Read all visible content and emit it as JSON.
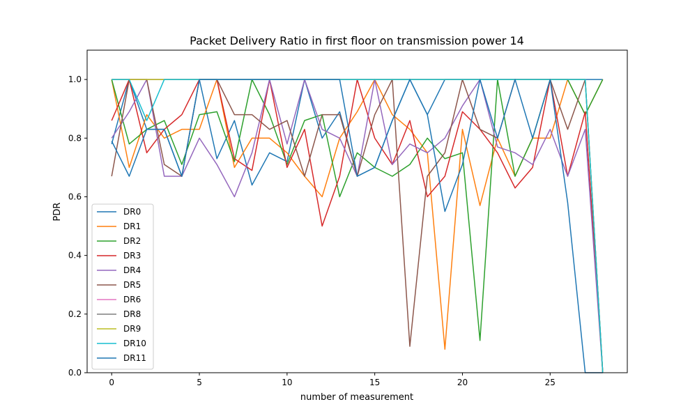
{
  "chart_data": {
    "type": "line",
    "title": "Packet Delivery Ratio in first floor on transmission power 14",
    "xlabel": "number of measurement",
    "ylabel": "PDR",
    "xlim": [
      -1.4,
      29.4
    ],
    "ylim": [
      0,
      1.1
    ],
    "x_ticks": [
      0,
      5,
      10,
      15,
      20,
      25
    ],
    "x_tick_labels": [
      "0",
      "5",
      "10",
      "15",
      "20",
      "25"
    ],
    "y_ticks": [
      0,
      0.2,
      0.4,
      0.6,
      0.8,
      1.0
    ],
    "y_tick_labels": [
      "0.0",
      "0.2",
      "0.4",
      "0.6",
      "0.8",
      "1.0"
    ],
    "grid": false,
    "legend_position": "lower-left",
    "x": [
      0,
      1,
      2,
      3,
      4,
      5,
      6,
      7,
      8,
      9,
      10,
      11,
      12,
      13,
      14,
      15,
      16,
      17,
      18,
      19,
      20,
      21,
      22,
      23,
      24,
      25,
      26,
      27,
      28
    ],
    "series": [
      {
        "name": "DR0",
        "color": "#1f77b4",
        "values": [
          0.78,
          1.0,
          0.83,
          0.83,
          0.67,
          1.0,
          0.73,
          0.86,
          0.64,
          0.75,
          0.72,
          1.0,
          0.8,
          0.89,
          0.67,
          0.7,
          0.86,
          1.0,
          0.88,
          1.0,
          1.0,
          1.0,
          1.0,
          1.0,
          1.0,
          1.0,
          1.0,
          1.0,
          1.0
        ]
      },
      {
        "name": "DR1",
        "color": "#ff7f0e",
        "values": [
          1.0,
          0.7,
          0.88,
          0.8,
          0.83,
          0.83,
          1.0,
          0.7,
          0.8,
          0.8,
          0.75,
          0.67,
          0.6,
          0.8,
          0.89,
          1.0,
          0.88,
          0.83,
          0.75,
          0.08,
          0.83,
          0.57,
          0.8,
          0.67,
          0.8,
          0.8,
          1.0,
          0.88,
          1.0
        ]
      },
      {
        "name": "DR2",
        "color": "#2ca02c",
        "values": [
          1.0,
          0.78,
          0.83,
          0.86,
          0.71,
          0.88,
          0.89,
          0.72,
          1.0,
          0.88,
          0.71,
          0.86,
          0.88,
          0.6,
          0.75,
          0.7,
          0.67,
          0.71,
          0.8,
          0.73,
          0.75,
          0.11,
          1.0,
          0.67,
          0.8,
          1.0,
          1.0,
          0.88,
          1.0
        ]
      },
      {
        "name": "DR3",
        "color": "#d62728",
        "values": [
          0.86,
          1.0,
          0.75,
          0.83,
          0.88,
          1.0,
          1.0,
          0.73,
          0.69,
          1.0,
          0.7,
          0.83,
          0.5,
          0.67,
          1.0,
          0.8,
          0.71,
          0.86,
          0.6,
          0.67,
          0.89,
          0.83,
          0.75,
          0.63,
          0.7,
          1.0,
          0.67,
          0.89,
          0.0
        ]
      },
      {
        "name": "DR4",
        "color": "#9467bd",
        "values": [
          0.8,
          0.89,
          1.0,
          0.67,
          0.67,
          0.8,
          0.71,
          0.6,
          0.75,
          1.0,
          0.78,
          1.0,
          0.83,
          0.8,
          0.67,
          1.0,
          0.71,
          0.78,
          0.75,
          0.8,
          0.91,
          1.0,
          0.77,
          0.75,
          0.71,
          0.83,
          0.67,
          0.83,
          0.0
        ]
      },
      {
        "name": "DR5",
        "color": "#8c564b",
        "values": [
          0.67,
          1.0,
          1.0,
          0.71,
          0.67,
          1.0,
          1.0,
          0.88,
          0.88,
          0.83,
          0.86,
          0.67,
          0.88,
          0.88,
          0.67,
          0.88,
          1.0,
          0.09,
          0.67,
          0.75,
          1.0,
          0.83,
          0.8,
          1.0,
          1.0,
          1.0,
          0.83,
          1.0,
          0.0
        ]
      },
      {
        "name": "DR6",
        "color": "#e377c2",
        "values": [
          1.0,
          1.0,
          1.0,
          1.0,
          1.0,
          1.0,
          1.0,
          1.0,
          1.0,
          1.0,
          1.0,
          1.0,
          1.0,
          1.0,
          1.0,
          1.0,
          1.0,
          1.0,
          1.0,
          1.0,
          1.0,
          1.0,
          1.0,
          1.0,
          1.0,
          1.0,
          1.0,
          1.0,
          0.0
        ]
      },
      {
        "name": "DR8",
        "color": "#7f7f7f",
        "values": [
          1.0,
          1.0,
          1.0,
          1.0,
          1.0,
          1.0,
          1.0,
          1.0,
          1.0,
          1.0,
          1.0,
          1.0,
          1.0,
          1.0,
          1.0,
          1.0,
          1.0,
          1.0,
          1.0,
          1.0,
          1.0,
          1.0,
          1.0,
          1.0,
          1.0,
          1.0,
          1.0,
          1.0,
          0.0
        ]
      },
      {
        "name": "DR9",
        "color": "#bcbd22",
        "values": [
          1.0,
          1.0,
          1.0,
          1.0,
          1.0,
          1.0,
          1.0,
          1.0,
          1.0,
          1.0,
          1.0,
          1.0,
          1.0,
          1.0,
          1.0,
          1.0,
          1.0,
          1.0,
          1.0,
          1.0,
          1.0,
          1.0,
          1.0,
          1.0,
          1.0,
          1.0,
          1.0,
          1.0,
          0.0
        ]
      },
      {
        "name": "DR10",
        "color": "#17becf",
        "values": [
          1.0,
          1.0,
          0.86,
          1.0,
          1.0,
          1.0,
          1.0,
          1.0,
          1.0,
          1.0,
          1.0,
          1.0,
          1.0,
          1.0,
          1.0,
          1.0,
          1.0,
          1.0,
          1.0,
          1.0,
          1.0,
          1.0,
          1.0,
          1.0,
          1.0,
          1.0,
          1.0,
          1.0,
          0.0
        ]
      },
      {
        "name": "DR11",
        "color": "#1f77b4",
        "values": [
          0.79,
          0.67,
          0.83,
          0.83,
          0.67,
          1.0,
          1.0,
          1.0,
          1.0,
          1.0,
          1.0,
          1.0,
          1.0,
          1.0,
          0.67,
          0.7,
          0.86,
          1.0,
          0.88,
          0.55,
          0.71,
          1.0,
          0.8,
          1.0,
          0.8,
          1.0,
          0.58,
          0.0,
          0.0
        ]
      }
    ]
  }
}
